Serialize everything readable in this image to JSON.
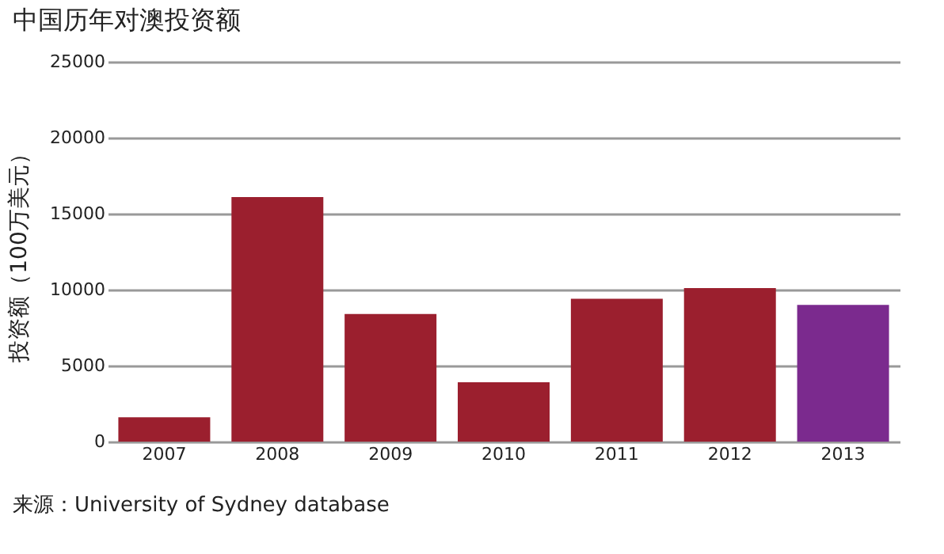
{
  "chart_data": {
    "type": "bar",
    "title": "中国历年对澳投资额",
    "ylabel": "投资额（100万美元）",
    "categories": [
      "2007",
      "2008",
      "2009",
      "2010",
      "2011",
      "2012",
      "2013"
    ],
    "values": [
      1600,
      16100,
      8400,
      3900,
      9400,
      10100,
      9000
    ],
    "colors": [
      "#9b1f2e",
      "#9b1f2e",
      "#9b1f2e",
      "#9b1f2e",
      "#9b1f2e",
      "#9b1f2e",
      "#7b2a8e"
    ],
    "ylim": [
      0,
      25000
    ],
    "yticks": [
      0,
      5000,
      10000,
      15000,
      20000,
      25000
    ],
    "grid": "y",
    "annotations": [
      "来源：University of Sydney database"
    ]
  }
}
